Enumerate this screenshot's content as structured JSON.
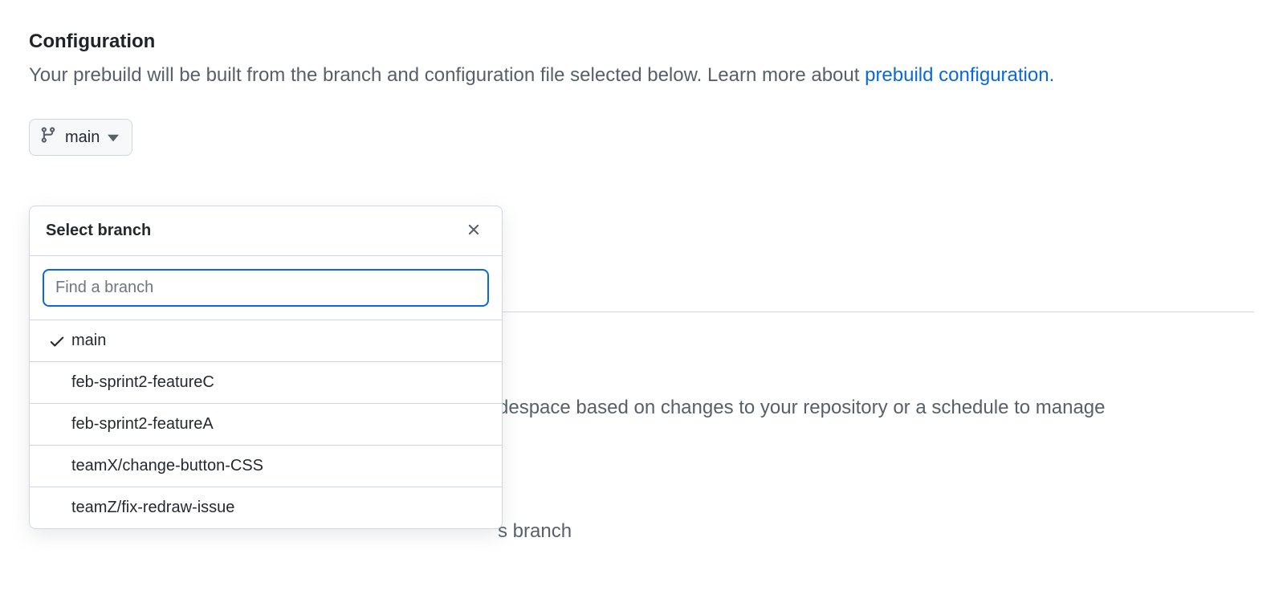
{
  "section": {
    "title": "Configuration",
    "desc_prefix": "Your prebuild will be built from the branch and configuration file selected below. Learn more about ",
    "desc_link": "prebuild configuration."
  },
  "branch_button": {
    "label": "main"
  },
  "dropdown": {
    "title": "Select branch",
    "search_placeholder": "Find a branch",
    "branches": [
      {
        "name": "main",
        "selected": true
      },
      {
        "name": "feb-sprint2-featureC",
        "selected": false
      },
      {
        "name": "feb-sprint2-featureA",
        "selected": false
      },
      {
        "name": "teamX/change-button-CSS",
        "selected": false
      },
      {
        "name": "teamZ/fix-redraw-issue",
        "selected": false
      }
    ]
  },
  "background_text": {
    "line1": "despace based on changes to your repository or a schedule to manage",
    "line2": "s branch"
  },
  "colors": {
    "link": "#0969da",
    "border": "#d0d7de",
    "text_primary": "#24292f",
    "text_muted": "#57606a",
    "btn_bg": "#f6f8fa"
  }
}
